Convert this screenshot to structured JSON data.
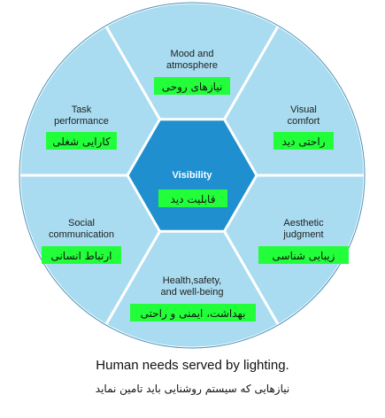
{
  "colors": {
    "ring": "#a9dcf0",
    "ring_border": "#ffffff",
    "outer_border": "#4a90b8",
    "center_hexagon": "#1f8fd0",
    "highlight": "#22ff3a"
  },
  "center": {
    "label": "Visibility",
    "fa_label": "قابلیت دید"
  },
  "segments": [
    {
      "label_lines": [
        "Mood and",
        "atmosphere"
      ],
      "fa_label": "نیازهای روحی"
    },
    {
      "label_lines": [
        "Visual",
        "comfort"
      ],
      "fa_label": "راحتی دید"
    },
    {
      "label_lines": [
        "Aesthetic",
        "judgment"
      ],
      "fa_label": "زیبایی شناسی"
    },
    {
      "label_lines": [
        "Health,safety,",
        "and well-being"
      ],
      "fa_label": "بهداشت، ایمنی و راحتی"
    },
    {
      "label_lines": [
        "Social",
        "communication"
      ],
      "fa_label": "ارتباط انسانی"
    },
    {
      "label_lines": [
        "Task",
        "performance"
      ],
      "fa_label": "کارایی شغلی"
    }
  ],
  "caption": {
    "en": "Human needs served by lighting.",
    "fa": "نیازهایی که سیستم روشنایی باید تامین نماید"
  }
}
